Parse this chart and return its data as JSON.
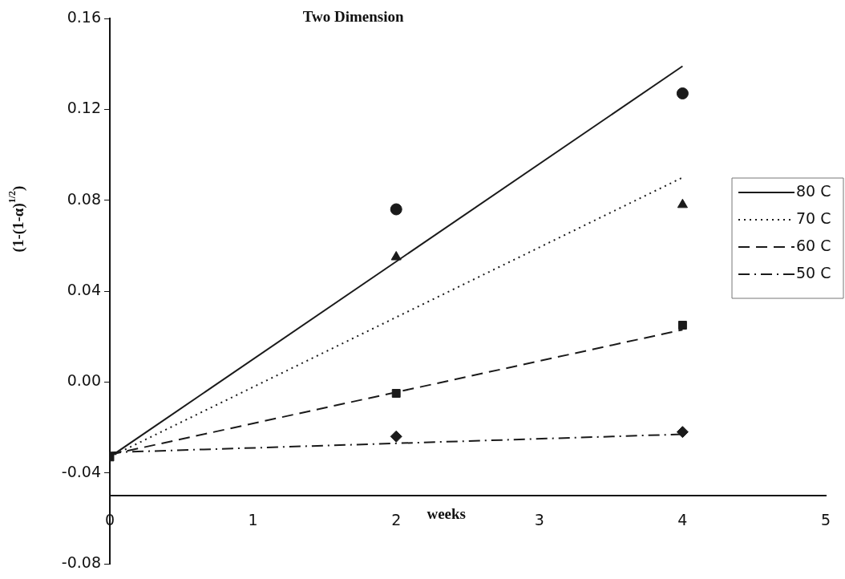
{
  "chart_data": {
    "type": "scatter",
    "title": "Two Dimension",
    "xlabel": "weeks",
    "ylabel": "(1-(1-α)$^{1/2}$)",
    "xlim": [
      0,
      5
    ],
    "xticks": [
      0,
      1,
      2,
      3,
      4,
      5
    ],
    "ylim": [
      -0.08,
      0.16
    ],
    "yticks": [
      {
        "value": -0.08,
        "label": "-0.08"
      },
      {
        "value": -0.04,
        "label": "-0.04"
      },
      {
        "value": 0,
        "label": "0.00"
      },
      {
        "value": 0.04,
        "label": "0.04"
      },
      {
        "value": 0.08,
        "label": "0.08"
      },
      {
        "value": 0.12,
        "label": "0.12"
      },
      {
        "value": 0.16,
        "label": "0.16"
      }
    ],
    "grid": false,
    "legend": "right",
    "series": [
      {
        "type": "scatter",
        "marker": "circle",
        "color": "#1a1a1a",
        "x": [
          2,
          4
        ],
        "values": [
          0.076,
          0.127
        ]
      },
      {
        "type": "scatter",
        "marker": "triangle",
        "color": "#1a1a1a",
        "x": [
          2,
          4
        ],
        "values": [
          0.055,
          0.078
        ]
      },
      {
        "type": "scatter",
        "marker": "square",
        "color": "#1a1a1a",
        "x": [
          0,
          2,
          4
        ],
        "values": [
          -0.033,
          -0.005,
          0.025
        ]
      },
      {
        "type": "scatter",
        "marker": "diamond",
        "color": "#1a1a1a",
        "x": [
          2,
          4
        ],
        "values": [
          -0.024,
          -0.022
        ]
      },
      {
        "type": "line",
        "name": "80 C",
        "line_style": "solid",
        "color": "#1a1a1a",
        "x": [
          0,
          4
        ],
        "values": [
          -0.033,
          0.139
        ]
      },
      {
        "type": "line",
        "name": "70 C",
        "line_style": "dotted",
        "color": "#1a1a1a",
        "x": [
          0,
          4
        ],
        "values": [
          -0.033,
          0.09
        ]
      },
      {
        "type": "line",
        "name": "60 C",
        "line_style": "dashed",
        "color": "#1a1a1a",
        "x": [
          0,
          4
        ],
        "values": [
          -0.032,
          0.023
        ]
      },
      {
        "type": "line",
        "name": "50 C",
        "line_style": "dashdot",
        "color": "#1a1a1a",
        "x": [
          0,
          4
        ],
        "values": [
          -0.031,
          -0.023
        ]
      }
    ]
  }
}
